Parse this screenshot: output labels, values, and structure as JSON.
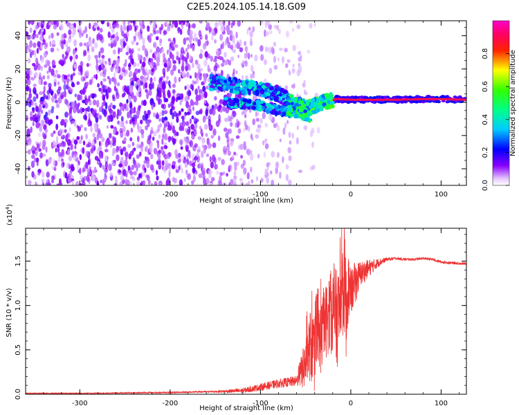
{
  "title": "C2E5.2024.105.14.18.G09",
  "chart_data": [
    {
      "type": "heatmap",
      "title": "C2E5.2024.105.14.18.G09",
      "xlabel": "Height of straight line (km)",
      "ylabel": "Frequency (Hz)",
      "xlim": [
        -360,
        128
      ],
      "ylim": [
        -50,
        49
      ],
      "x_ticks": [
        -300,
        -200,
        -100,
        0,
        100
      ],
      "x_tick_labels": [
        "-300",
        "-200",
        "-100",
        "0",
        "100"
      ],
      "y_ticks": [
        -40,
        -20,
        0,
        20,
        40
      ],
      "y_tick_labels": [
        "-40",
        "-20",
        "0",
        "20",
        "40"
      ],
      "colorbar": {
        "label": "Normalized spectral amplitude",
        "range": [
          0,
          1
        ],
        "ticks": [
          0.0,
          0.2,
          0.4,
          0.6,
          0.8
        ],
        "tick_labels": [
          "0.0",
          "0.2",
          "0.4",
          "0.6",
          "0.8"
        ],
        "colormap": "rainbow (white-purple-blue-cyan-green-yellow-red-magenta)"
      },
      "ridge": [
        {
          "x": -150,
          "y": 12
        },
        {
          "x": -120,
          "y": 9
        },
        {
          "x": -100,
          "y": 8
        },
        {
          "x": -80,
          "y": 5
        },
        {
          "x": -60,
          "y": -2
        },
        {
          "x": -45,
          "y": -3
        },
        {
          "x": -30,
          "y": 0
        },
        {
          "x": -15,
          "y": 2
        },
        {
          "x": 0,
          "y": 1.5
        },
        {
          "x": 50,
          "y": 1.5
        },
        {
          "x": 90,
          "y": 2
        },
        {
          "x": 128,
          "y": 1.5
        }
      ],
      "ridge_branch": [
        {
          "x": -140,
          "y": 0
        },
        {
          "x": -120,
          "y": -1
        },
        {
          "x": -100,
          "y": -2
        },
        {
          "x": -80,
          "y": -5
        },
        {
          "x": -60,
          "y": -6
        },
        {
          "x": -45,
          "y": -9
        }
      ]
    },
    {
      "type": "line",
      "xlabel": "Height of straight line (km)",
      "ylabel": "SNR (10 * v/v)",
      "y_multiplier_label": "(x10",
      "y_multiplier_exp": "4",
      "y_multiplier_close": ")",
      "xlim": [
        -360,
        128
      ],
      "ylim": [
        0,
        1.87
      ],
      "x_ticks": [
        -300,
        -200,
        -100,
        0,
        100
      ],
      "x_tick_labels": [
        "-300",
        "-200",
        "-100",
        "0",
        "100"
      ],
      "y_ticks": [
        0.0,
        0.5,
        1.0,
        1.5
      ],
      "y_tick_labels": [
        "0.0",
        "0.5",
        "1.0",
        "1.5"
      ],
      "series": [
        {
          "color": "#ee3333",
          "x": [
            -360,
            -300,
            -250,
            -200,
            -150,
            -120,
            -100,
            -80,
            -60,
            -50,
            -45,
            -40,
            -35,
            -30,
            -25,
            -20,
            -15,
            -10,
            -7,
            -5,
            -3,
            0,
            5,
            10,
            20,
            30,
            40,
            50,
            60,
            70,
            80,
            90,
            100,
            110,
            128
          ],
          "y": [
            0.01,
            0.01,
            0.015,
            0.02,
            0.03,
            0.04,
            0.08,
            0.12,
            0.15,
            0.35,
            0.55,
            0.45,
            0.6,
            0.75,
            0.9,
            0.95,
            0.85,
            1.1,
            1.3,
            0.9,
            1.2,
            1.15,
            1.25,
            1.35,
            1.42,
            1.48,
            1.52,
            1.53,
            1.52,
            1.52,
            1.53,
            1.52,
            1.49,
            1.48,
            1.47
          ],
          "noise": [
            0.005,
            0.006,
            0.006,
            0.008,
            0.01,
            0.03,
            0.04,
            0.05,
            0.06,
            0.3,
            0.4,
            0.45,
            0.45,
            0.4,
            0.45,
            0.5,
            0.55,
            0.6,
            0.6,
            0.55,
            0.4,
            0.25,
            0.25,
            0.15,
            0.1,
            0.05,
            0.02,
            0.015,
            0.015,
            0.015,
            0.015,
            0.015,
            0.015,
            0.015,
            0.015
          ]
        }
      ]
    }
  ]
}
